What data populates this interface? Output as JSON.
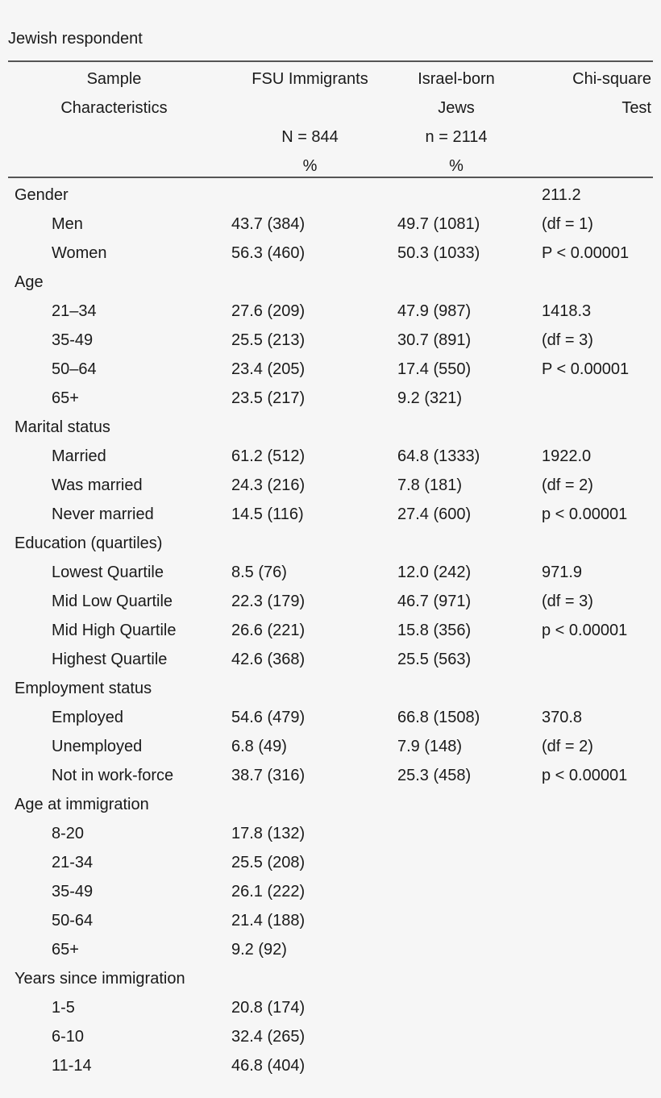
{
  "caption": "Jewish respondent",
  "header": {
    "rows": [
      [
        "Sample",
        "FSU Immigrants",
        "Israel-born",
        "Chi-square"
      ],
      [
        "Characteristics",
        "",
        "Jews",
        "Test"
      ],
      [
        "",
        "N = 844",
        "n = 2114",
        ""
      ],
      [
        "",
        "%",
        "%",
        ""
      ]
    ]
  },
  "rows": [
    {
      "type": "group",
      "label": "Gender",
      "fsu": "",
      "israel": "",
      "chi": "211.2"
    },
    {
      "type": "item",
      "label": "Men",
      "fsu": "43.7 (384)",
      "israel": "49.7 (1081)",
      "chi": "(df = 1)"
    },
    {
      "type": "item",
      "label": "Women",
      "fsu": "56.3 (460)",
      "israel": "50.3 (1033)",
      "chi": "P < 0.00001"
    },
    {
      "type": "group",
      "label": "Age",
      "fsu": "",
      "israel": "",
      "chi": ""
    },
    {
      "type": "item",
      "label": "21–34",
      "fsu": "27.6 (209)",
      "israel": "47.9 (987)",
      "chi": "1418.3"
    },
    {
      "type": "item",
      "label": "35-49",
      "fsu": "25.5 (213)",
      "israel": "30.7 (891)",
      "chi": "(df = 3)"
    },
    {
      "type": "item",
      "label": "50–64",
      "fsu": "23.4 (205)",
      "israel": "17.4 (550)",
      "chi": "P < 0.00001"
    },
    {
      "type": "item",
      "label": "65+",
      "fsu": "23.5 (217)",
      "israel": "9.2 (321)",
      "chi": ""
    },
    {
      "type": "group",
      "label": "Marital status",
      "fsu": "",
      "israel": "",
      "chi": ""
    },
    {
      "type": "item",
      "label": "Married",
      "fsu": "61.2 (512)",
      "israel": "64.8 (1333)",
      "chi": "1922.0"
    },
    {
      "type": "item",
      "label": "Was married",
      "fsu": "24.3 (216)",
      "israel": "7.8 (181)",
      "chi": "(df = 2)"
    },
    {
      "type": "item",
      "label": "Never married",
      "fsu": "14.5 (116)",
      "israel": "27.4 (600)",
      "chi": "p < 0.00001"
    },
    {
      "type": "group",
      "label": "Education (quartiles)",
      "fsu": "",
      "israel": "",
      "chi": ""
    },
    {
      "type": "item",
      "label": "Lowest Quartile",
      "fsu": "8.5 (76)",
      "israel": "12.0 (242)",
      "chi": "971.9"
    },
    {
      "type": "item",
      "label": "Mid Low Quartile",
      "fsu": "22.3 (179)",
      "israel": "46.7 (971)",
      "chi": "(df = 3)"
    },
    {
      "type": "item",
      "label": "Mid High Quartile",
      "fsu": "26.6 (221)",
      "israel": "15.8 (356)",
      "chi": "p < 0.00001"
    },
    {
      "type": "item",
      "label": "Highest Quartile",
      "fsu": "42.6 (368)",
      "israel": "25.5 (563)",
      "chi": ""
    },
    {
      "type": "group",
      "label": "Employment status",
      "fsu": "",
      "israel": "",
      "chi": ""
    },
    {
      "type": "item",
      "label": "Employed",
      "fsu": "54.6 (479)",
      "israel": "66.8 (1508)",
      "chi": "370.8"
    },
    {
      "type": "item",
      "label": "Unemployed",
      "fsu": "6.8 (49)",
      "israel": "7.9 (148)",
      "chi": "(df = 2)"
    },
    {
      "type": "item",
      "label": "Not in work-force",
      "fsu": "38.7 (316)",
      "israel": "25.3 (458)",
      "chi": "p < 0.00001"
    },
    {
      "type": "group",
      "label": "Age at immigration",
      "fsu": "",
      "israel": "",
      "chi": ""
    },
    {
      "type": "item",
      "label": "8-20",
      "fsu": "17.8 (132)",
      "israel": "",
      "chi": ""
    },
    {
      "type": "item",
      "label": "21-34",
      "fsu": "25.5 (208)",
      "israel": "",
      "chi": ""
    },
    {
      "type": "item",
      "label": "35-49",
      "fsu": "26.1 (222)",
      "israel": "",
      "chi": ""
    },
    {
      "type": "item",
      "label": "50-64",
      "fsu": "21.4 (188)",
      "israel": "",
      "chi": ""
    },
    {
      "type": "item",
      "label": "65+",
      "fsu": "9.2 (92)",
      "israel": "",
      "chi": ""
    },
    {
      "type": "group",
      "label": "Years since immigration",
      "fsu": "",
      "israel": "",
      "chi": ""
    },
    {
      "type": "item",
      "label": "1-5",
      "fsu": "20.8 (174)",
      "israel": "",
      "chi": ""
    },
    {
      "type": "item",
      "label": "6-10",
      "fsu": "32.4 (265)",
      "israel": "",
      "chi": ""
    },
    {
      "type": "item",
      "label": "11-14",
      "fsu": "46.8 (404)",
      "israel": "",
      "chi": ""
    }
  ]
}
